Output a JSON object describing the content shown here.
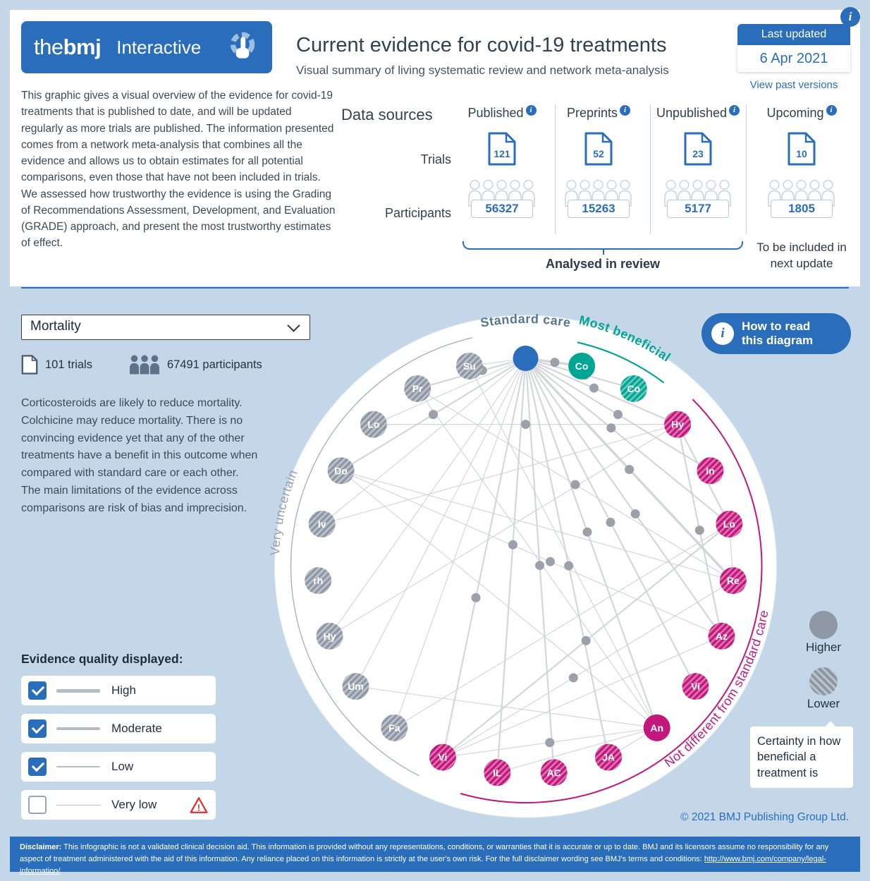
{
  "header": {
    "logo_the": "the",
    "logo_bmj": "bmj",
    "logo_suffix": "Interactive",
    "title": "Current evidence for covid-19 treatments",
    "subtitle": "Visual summary of living systematic review and network meta-analysis",
    "last_updated_label": "Last updated",
    "last_updated_date": "6 Apr 2021",
    "view_past_versions": "View past versions"
  },
  "intro": "This graphic gives a visual overview of the evidence for covid-19 treatments that is published to date, and will be updated regularly as more trials are published. The information presented comes from a network meta-analysis that combines all the evidence and allows us to obtain estimates for all potential comparisons, even those that have not been included in trials. We assessed how trustworthy the evidence is using the Grading of Recommendations Assessment, Development, and Evaluation (GRADE) approach, and present the most trustworthy estimates of effect.",
  "data_sources": {
    "heading": "Data sources",
    "row_labels": {
      "trials": "Trials",
      "participants": "Participants"
    },
    "columns": [
      {
        "label": "Published",
        "trials": "121",
        "participants": "56327"
      },
      {
        "label": "Preprints",
        "trials": "52",
        "participants": "15263"
      },
      {
        "label": "Unpublished",
        "trials": "23",
        "participants": "5177"
      },
      {
        "label": "Upcoming",
        "trials": "10",
        "participants": "1805"
      }
    ],
    "bracket_label": "Analysed in review",
    "upcoming_note": "To be included in next update"
  },
  "controls": {
    "outcome_selected": "Mortality",
    "trials_stat": "101 trials",
    "participants_stat": "67491 participants"
  },
  "summary": "Corticosteroids are likely to reduce mortality. Colchicine may reduce mortality. There is no convincing evidence yet that any of the other treatments have a benefit in this outcome when compared with standard care or each other. The main limitations of the evidence across comparisons are risk of bias and imprecision.",
  "how_to_button": {
    "line1": "How to read",
    "line2": "this diagram"
  },
  "legend": {
    "higher": "Higher",
    "lower": "Lower",
    "certainty_note": "Certainty in how beneficial a treatment is"
  },
  "evidence_quality": {
    "heading": "Evidence quality displayed:",
    "items": [
      {
        "label": "High",
        "checked": true,
        "line_weight": 5,
        "warning": false
      },
      {
        "label": "Moderate",
        "checked": true,
        "line_weight": 3.5,
        "warning": false
      },
      {
        "label": "Low",
        "checked": true,
        "line_weight": 2,
        "warning": false
      },
      {
        "label": "Very low",
        "checked": false,
        "line_weight": 1,
        "warning": true
      }
    ]
  },
  "copyright": "© 2021 BMJ Publishing Group Ltd.",
  "footer": {
    "label": "Disclaimer:",
    "text": "This infographic is not a validated clinical decision aid. This information is provided without any representations, conditions, or warranties that it is accurate or up to date. BMJ and its licensors assume no responsibility for any aspect of treatment administered with the aid of this information. Any reliance placed on this information is strictly at the user's own risk. For the full disclaimer wording see BMJ's terms and conditions:",
    "link": "http://www.bmj.com/company/legal-information/"
  },
  "chart_data": {
    "type": "network",
    "colors": {
      "blue": "#2a6ebb",
      "teal": "#00a693",
      "magenta": "#c2187c",
      "gray": "#8e97a4"
    },
    "arc_labels": {
      "standard_care": "Standard care",
      "most_beneficial": "Most beneficial",
      "very_uncertain": "Very uncertain",
      "not_different": "Not different from standard care"
    },
    "nodes": [
      {
        "label": "",
        "group": "standard_care",
        "texture": "solid"
      },
      {
        "label": "Co",
        "group": "beneficial",
        "texture": "solid"
      },
      {
        "label": "Co",
        "group": "beneficial",
        "texture": "hatched"
      },
      {
        "label": "Hy",
        "group": "not_different",
        "texture": "hatched"
      },
      {
        "label": "In",
        "group": "not_different",
        "texture": "hatched"
      },
      {
        "label": "Lo",
        "group": "not_different",
        "texture": "hatched"
      },
      {
        "label": "Re",
        "group": "not_different",
        "texture": "hatched"
      },
      {
        "label": "Az",
        "group": "not_different",
        "texture": "hatched"
      },
      {
        "label": "Vi",
        "group": "not_different",
        "texture": "hatched"
      },
      {
        "label": "An",
        "group": "not_different",
        "texture": "solid"
      },
      {
        "label": "JA",
        "group": "not_different",
        "texture": "hatched"
      },
      {
        "label": "AC",
        "group": "not_different",
        "texture": "hatched"
      },
      {
        "label": "IL",
        "group": "not_different",
        "texture": "hatched"
      },
      {
        "label": "Vi",
        "group": "not_different",
        "texture": "hatched"
      },
      {
        "label": "Fa",
        "group": "uncertain",
        "texture": "hatched"
      },
      {
        "label": "Um",
        "group": "uncertain",
        "texture": "hatched"
      },
      {
        "label": "Hy",
        "group": "uncertain",
        "texture": "hatched"
      },
      {
        "label": "rh",
        "group": "uncertain",
        "texture": "hatched"
      },
      {
        "label": "Iv",
        "group": "uncertain",
        "texture": "hatched"
      },
      {
        "label": "Do",
        "group": "uncertain",
        "texture": "hatched"
      },
      {
        "label": "Lo",
        "group": "uncertain",
        "texture": "hatched"
      },
      {
        "label": "Pr",
        "group": "uncertain",
        "texture": "hatched"
      },
      {
        "label": "Su",
        "group": "uncertain",
        "texture": "hatched"
      }
    ],
    "edges": [
      [
        0,
        1,
        3.5,
        0.52
      ],
      [
        0,
        2,
        2.2,
        0.55
      ],
      [
        0,
        3,
        2.2,
        0.45
      ],
      [
        0,
        4,
        2.2,
        0.5
      ],
      [
        0,
        5,
        2.2,
        0.42
      ],
      [
        0,
        6,
        3.5,
        0.5
      ],
      [
        0,
        7,
        2.2,
        0.56
      ],
      [
        0,
        8,
        2.2,
        0.5
      ],
      [
        0,
        9,
        2.2,
        0.47
      ],
      [
        0,
        10,
        2.2,
        0.52
      ],
      [
        0,
        11,
        2.2,
        0.5
      ],
      [
        0,
        12,
        2.2,
        0.45
      ],
      [
        0,
        13,
        2.2,
        0.6
      ],
      [
        0,
        14,
        1.2,
        null
      ],
      [
        0,
        15,
        1.2,
        null
      ],
      [
        0,
        16,
        1.2,
        null
      ],
      [
        0,
        18,
        1.2,
        null
      ],
      [
        0,
        19,
        2.2,
        0.5
      ],
      [
        0,
        20,
        1.2,
        null
      ],
      [
        0,
        21,
        2.2,
        0.4
      ],
      [
        0,
        22,
        1.2,
        null
      ],
      [
        21,
        6,
        1.2,
        0.5
      ],
      [
        21,
        9,
        1.2,
        null
      ],
      [
        19,
        7,
        1.2,
        0.55
      ],
      [
        19,
        9,
        1.2,
        null
      ],
      [
        19,
        6,
        1.2,
        null
      ],
      [
        20,
        3,
        1.2,
        0.5
      ],
      [
        18,
        3,
        1.2,
        null
      ],
      [
        16,
        3,
        1.2,
        null
      ],
      [
        3,
        7,
        2.2,
        0.5
      ],
      [
        3,
        5,
        2.2,
        0.5
      ],
      [
        5,
        6,
        1.2,
        null
      ],
      [
        13,
        5,
        2.2,
        0.5
      ],
      [
        13,
        6,
        1.2,
        0.45
      ],
      [
        13,
        7,
        1.2,
        null
      ],
      [
        13,
        9,
        1.2,
        0.5
      ],
      [
        12,
        9,
        1.2,
        null
      ],
      [
        10,
        9,
        1.2,
        null
      ],
      [
        14,
        5,
        1.2,
        null
      ],
      [
        15,
        9,
        1.2,
        null
      ],
      [
        22,
        9,
        1.2,
        null
      ]
    ]
  }
}
